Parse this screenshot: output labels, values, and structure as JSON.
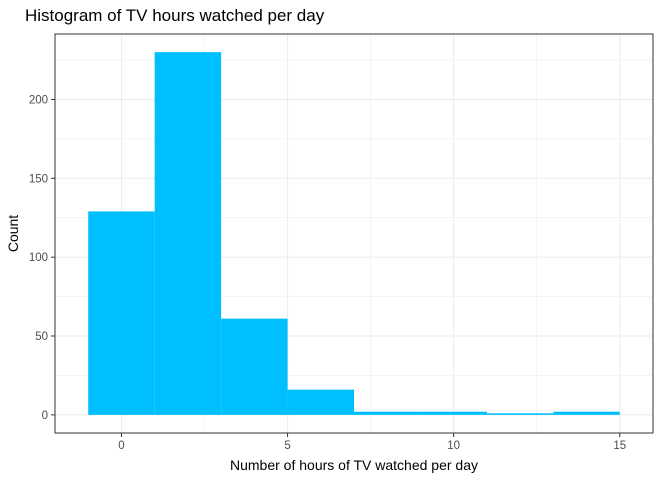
{
  "chart_data": {
    "type": "bar",
    "subtype": "histogram",
    "title": "Histogram of TV hours watched per day",
    "xlabel": "Number of hours of TV watched per day",
    "ylabel": "Count",
    "bins": [
      {
        "x_start": -1,
        "x_end": 1,
        "count": 129
      },
      {
        "x_start": 1,
        "x_end": 3,
        "count": 230
      },
      {
        "x_start": 3,
        "x_end": 5,
        "count": 61
      },
      {
        "x_start": 5,
        "x_end": 7,
        "count": 16
      },
      {
        "x_start": 7,
        "x_end": 9,
        "count": 2
      },
      {
        "x_start": 9,
        "x_end": 11,
        "count": 2
      },
      {
        "x_start": 11,
        "x_end": 13,
        "count": 1
      },
      {
        "x_start": 13,
        "x_end": 15,
        "count": 2
      }
    ],
    "xlim": [
      -2,
      16
    ],
    "ylim": [
      -11.5,
      241.5
    ],
    "x_ticks": [
      0,
      5,
      10,
      15
    ],
    "y_ticks": [
      0,
      50,
      100,
      150,
      200
    ],
    "x_tick_labels": [
      "0",
      "5",
      "10",
      "15"
    ],
    "y_tick_labels": [
      "0",
      "50",
      "100",
      "150",
      "200"
    ],
    "grid": true,
    "legend": "none",
    "colors": {
      "bar": "#00BFFF",
      "grid": "#ebebeb",
      "panel_border": "#333333"
    }
  }
}
